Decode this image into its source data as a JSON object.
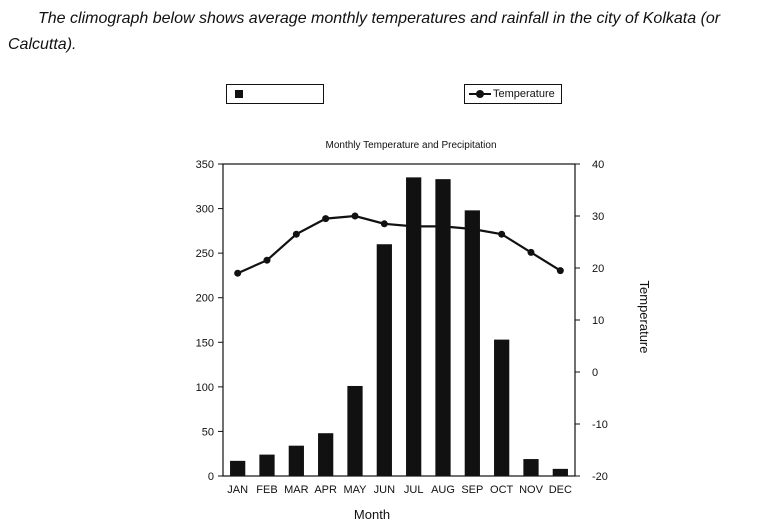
{
  "intro": {
    "text": "The climograph below shows average monthly temperatures and rainfall in the city of Kolkata (or Calcutta)."
  },
  "legend": {
    "rainfall_label": "",
    "temperature_label": "Temperature"
  },
  "chart_data": {
    "type": "bar",
    "title": "Monthly Temperature and Precipitation",
    "xlabel": "Month",
    "ylabel_right": "Temperature",
    "categories": [
      "JAN",
      "FEB",
      "MAR",
      "APR",
      "MAY",
      "JUN",
      "JUL",
      "AUG",
      "SEP",
      "OCT",
      "NOV",
      "DEC"
    ],
    "ylim_left": [
      0,
      350
    ],
    "yticks_left": [
      0,
      50,
      100,
      150,
      200,
      250,
      300,
      350
    ],
    "ylim_right": [
      -20,
      40
    ],
    "yticks_right": [
      -20,
      -10,
      0,
      10,
      20,
      30,
      40
    ],
    "series": [
      {
        "type": "bar",
        "axis": "left",
        "values": [
          17,
          24,
          34,
          48,
          101,
          260,
          335,
          333,
          298,
          153,
          19,
          8
        ]
      },
      {
        "name": "Temperature",
        "type": "line",
        "axis": "right",
        "values": [
          19,
          21.5,
          26.5,
          29.5,
          30,
          28.5,
          28,
          28,
          27.5,
          26.5,
          23,
          19.5
        ]
      }
    ],
    "legend_position": "top",
    "grid": false,
    "colors": {
      "bars": "#111111",
      "line": "#111111"
    }
  }
}
